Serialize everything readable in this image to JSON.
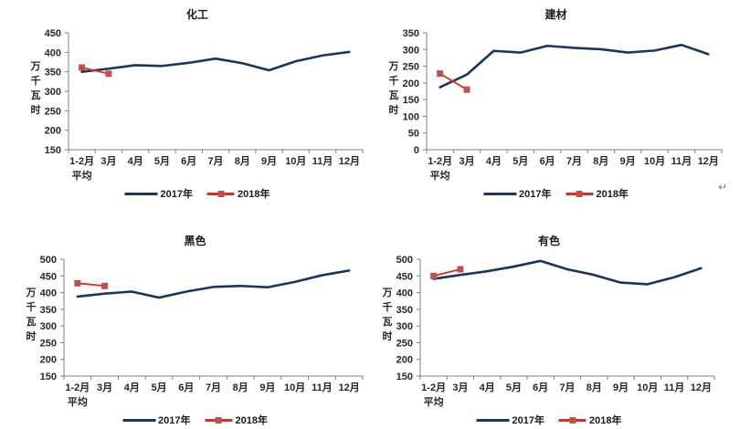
{
  "page": {
    "background": "#ffffff",
    "paragraph_mark": "↵"
  },
  "style": {
    "series_2017_color": "#17375E",
    "series_2018_line_color": "#E02B20",
    "series_2018_marker_color": "#C0504D",
    "axis_color": "#808080",
    "text_color": "#2b2623",
    "title_color": "#1a1a1a"
  },
  "chart_data": [
    {
      "type": "line",
      "title": "化工",
      "ylabel": "万千瓦时",
      "xlabel": "",
      "ylim": [
        150,
        450
      ],
      "ytick_step": 50,
      "grid": false,
      "legend_position": "bottom",
      "categories": [
        "1-2月\n平均",
        "3月",
        "4月",
        "5月",
        "6月",
        "7月",
        "8月",
        "9月",
        "10月",
        "11月",
        "12月"
      ],
      "series": [
        {
          "name": "2017年",
          "values": [
            350,
            358,
            367,
            365,
            373,
            384,
            372,
            354,
            377,
            392,
            401
          ]
        },
        {
          "name": "2018年",
          "values": [
            361,
            345
          ]
        }
      ]
    },
    {
      "type": "line",
      "title": "建材",
      "ylabel": "万千瓦时",
      "xlabel": "",
      "ylim": [
        0,
        350
      ],
      "ytick_step": 50,
      "grid": false,
      "legend_position": "bottom",
      "categories": [
        "1-2月\n平均",
        "3月",
        "4月",
        "5月",
        "6月",
        "7月",
        "8月",
        "9月",
        "10月",
        "11月",
        "12月"
      ],
      "series": [
        {
          "name": "2017年",
          "values": [
            187,
            225,
            296,
            291,
            311,
            305,
            301,
            291,
            297,
            314,
            286
          ]
        },
        {
          "name": "2018年",
          "values": [
            228,
            180
          ]
        }
      ]
    },
    {
      "type": "line",
      "title": "黑色",
      "ylabel": "万千瓦时",
      "xlabel": "",
      "ylim": [
        150,
        500
      ],
      "ytick_step": 50,
      "grid": false,
      "legend_position": "bottom",
      "categories": [
        "1-2月\n平均",
        "3月",
        "4月",
        "5月",
        "6月",
        "7月",
        "8月",
        "9月",
        "10月",
        "11月",
        "12月"
      ],
      "series": [
        {
          "name": "2017年",
          "values": [
            388,
            397,
            403,
            385,
            403,
            417,
            420,
            416,
            432,
            452,
            466
          ]
        },
        {
          "name": "2018年",
          "values": [
            428,
            420
          ]
        }
      ]
    },
    {
      "type": "line",
      "title": "有色",
      "ylabel": "万千瓦时",
      "xlabel": "",
      "ylim": [
        150,
        500
      ],
      "ytick_step": 50,
      "grid": false,
      "legend_position": "bottom",
      "categories": [
        "1-2月\n平均",
        "3月",
        "4月",
        "5月",
        "6月",
        "7月",
        "8月",
        "9月",
        "10月",
        "11月",
        "12月"
      ],
      "series": [
        {
          "name": "2017年",
          "values": [
            441,
            453,
            464,
            478,
            495,
            470,
            453,
            430,
            425,
            446,
            473
          ]
        },
        {
          "name": "2018年",
          "values": [
            450,
            470
          ]
        }
      ]
    }
  ]
}
